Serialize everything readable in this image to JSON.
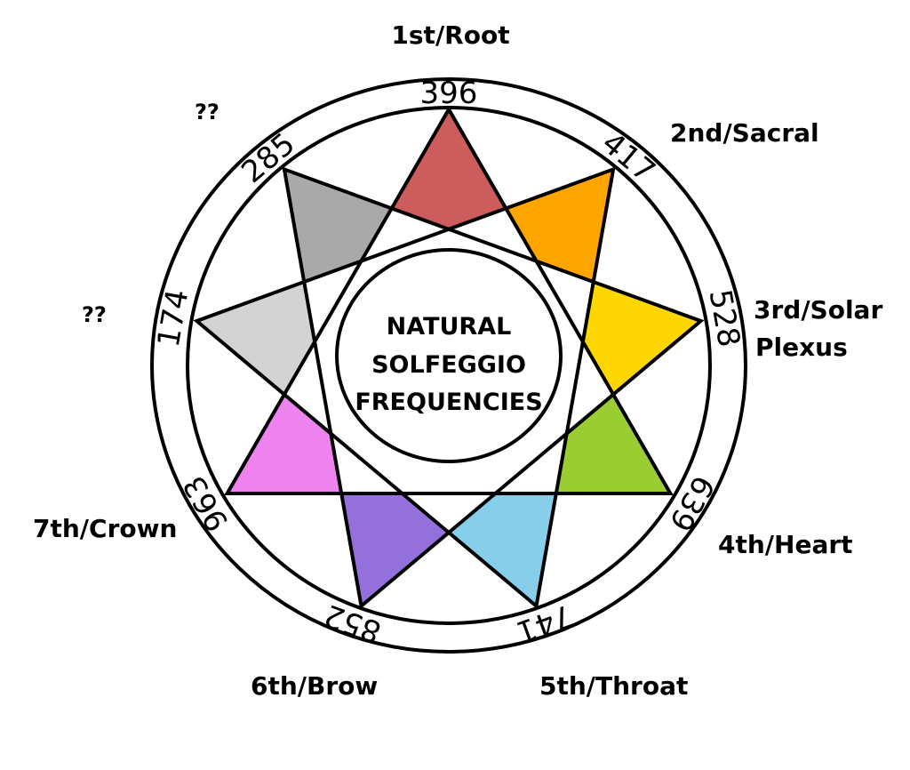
{
  "diagram": {
    "center_title": [
      "NATURAL",
      "SOLFEGGIO",
      "FREQUENCIES"
    ],
    "points": [
      {
        "frequency": "396",
        "chakra_lines": [
          "1st/Root"
        ],
        "color": "#cd5c5c"
      },
      {
        "frequency": "417",
        "chakra_lines": [
          "2nd/Sacral"
        ],
        "color": "#ffa500"
      },
      {
        "frequency": "528",
        "chakra_lines": [
          "3rd/Solar",
          "Plexus"
        ],
        "color": "#ffd700"
      },
      {
        "frequency": "639",
        "chakra_lines": [
          "4th/Heart"
        ],
        "color": "#9acd32"
      },
      {
        "frequency": "741",
        "chakra_lines": [
          "5th/Throat"
        ],
        "color": "#87ceeb"
      },
      {
        "frequency": "852",
        "chakra_lines": [
          "6th/Brow"
        ],
        "color": "#9370db"
      },
      {
        "frequency": "963",
        "chakra_lines": [
          "7th/Crown"
        ],
        "color": "#ee82ee"
      },
      {
        "frequency": "174",
        "chakra_lines": [
          "??"
        ],
        "color": "#d3d3d3"
      },
      {
        "frequency": "285",
        "chakra_lines": [
          "??"
        ],
        "color": "#a9a9a9"
      }
    ],
    "line_color": "#000000",
    "background": "#ffffff"
  }
}
